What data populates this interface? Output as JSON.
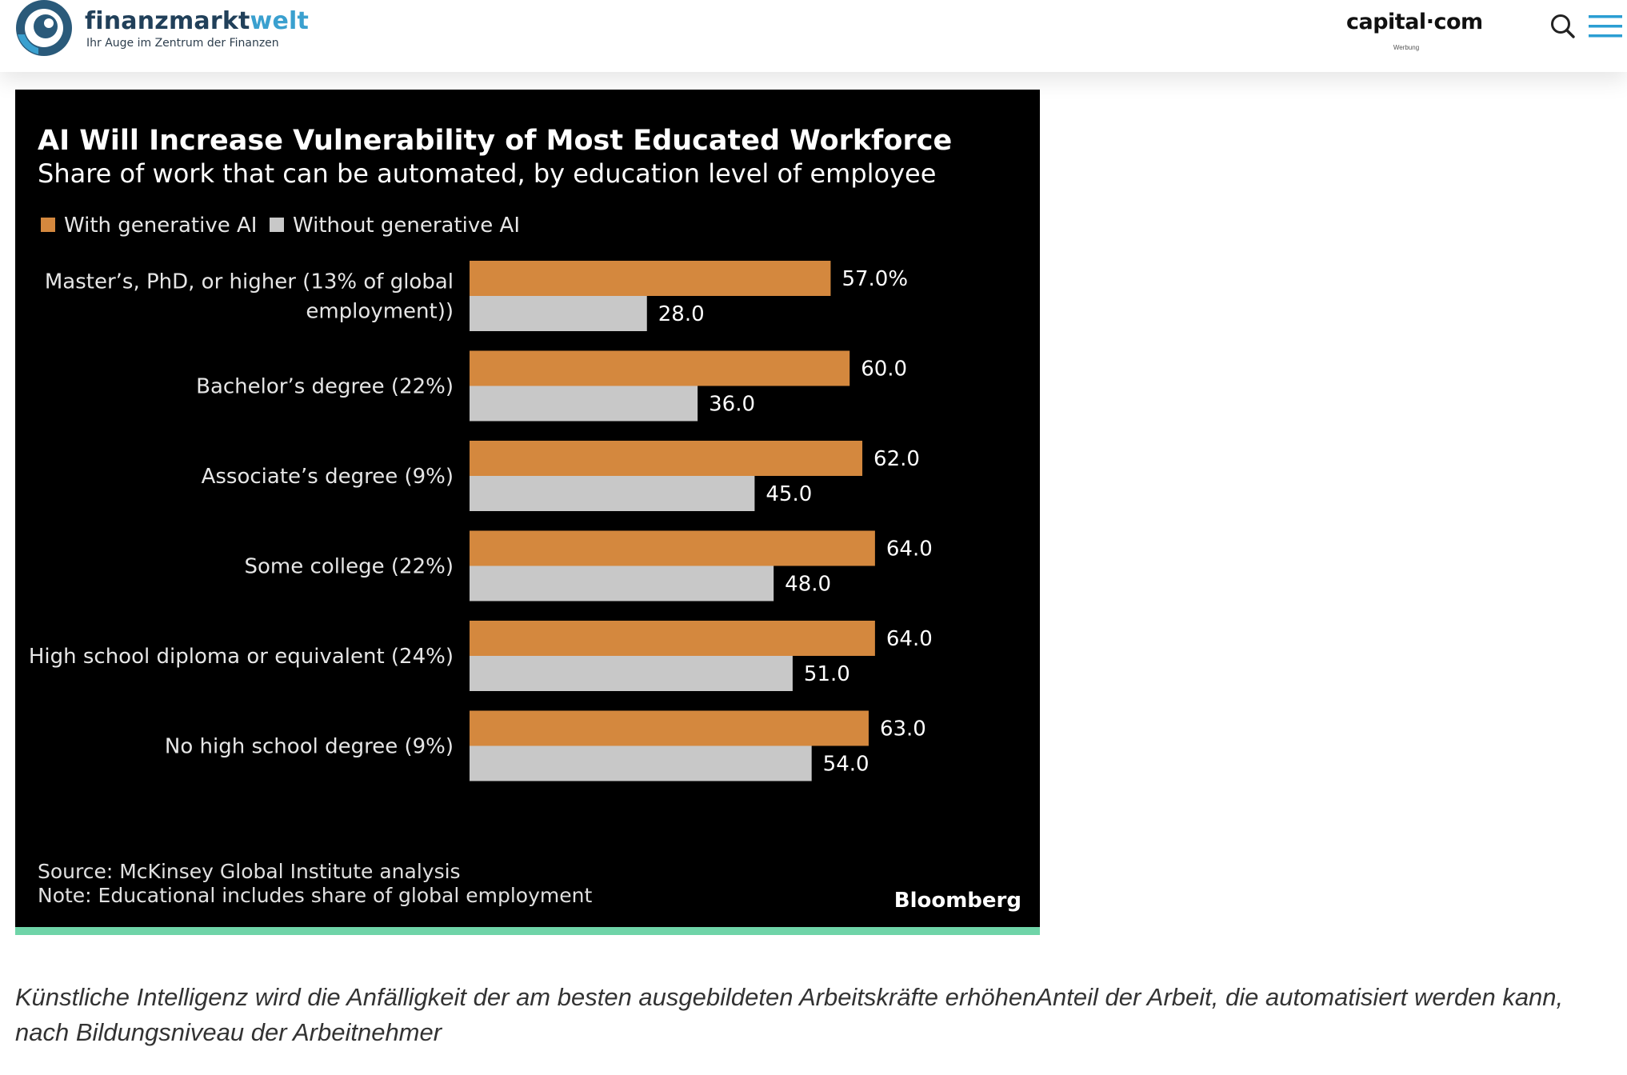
{
  "header": {
    "brand_name_main": "finanzmarkt",
    "brand_name_accent": "welt",
    "tagline": "Ihr Auge im Zentrum der Finanzen",
    "ad_logo": "capital·com",
    "ad_label": "Werbung",
    "icons": [
      "logo-eye-icon",
      "search-icon",
      "hamburger-menu-icon"
    ]
  },
  "colors": {
    "brand_dark": "#21405a",
    "brand_accent": "#3aa0cf",
    "chart_bg": "#000000",
    "with_ai": "#d4883e",
    "without_ai": "#c8c8c8",
    "accent_bar": "#6fd4a8"
  },
  "chart_data": {
    "type": "bar",
    "orientation": "horizontal",
    "title": "AI Will Increase Vulnerability of Most Educated Workforce",
    "subtitle": "Share of work that can be automated, by education level of employee",
    "categories": [
      "Master’s, PhD, or higher (13% of global employment))",
      "Bachelor’s degree (22%)",
      "Associate’s degree (9%)",
      "Some college (22%)",
      "High school diploma or equivalent (24%)",
      "No high school degree (9%)"
    ],
    "category_label_lines": [
      [
        "Master’s, PhD, or higher (13% of global",
        "employment))"
      ],
      [
        "Bachelor’s degree (22%)"
      ],
      [
        "Associate’s degree (9%)"
      ],
      [
        "Some college (22%)"
      ],
      [
        "High school diploma or equivalent (24%)"
      ],
      [
        "No high school degree (9%)"
      ]
    ],
    "series": [
      {
        "name": "With generative AI",
        "color": "#d4883e",
        "values": [
          57.0,
          60.0,
          62.0,
          64.0,
          64.0,
          63.0
        ],
        "labels": [
          "57.0%",
          "60.0",
          "62.0",
          "64.0",
          "64.0",
          "63.0"
        ]
      },
      {
        "name": "Without generative AI",
        "color": "#c8c8c8",
        "values": [
          28.0,
          36.0,
          45.0,
          48.0,
          51.0,
          54.0
        ],
        "labels": [
          "28.0",
          "36.0",
          "45.0",
          "48.0",
          "51.0",
          "54.0"
        ]
      }
    ],
    "xlim": [
      0,
      100
    ],
    "grid": false,
    "legend_position": "top-left",
    "source": "Source: McKinsey Global Institute analysis",
    "note": "Note: Educational includes share of global employment",
    "publisher": "Bloomberg"
  },
  "caption": "Künstliche Intelligenz wird die Anfälligkeit der am besten ausgebildeten Arbeitskräfte erhöhenAnteil der Arbeit, die automatisiert werden kann, nach Bildungsniveau der Arbeitnehmer"
}
